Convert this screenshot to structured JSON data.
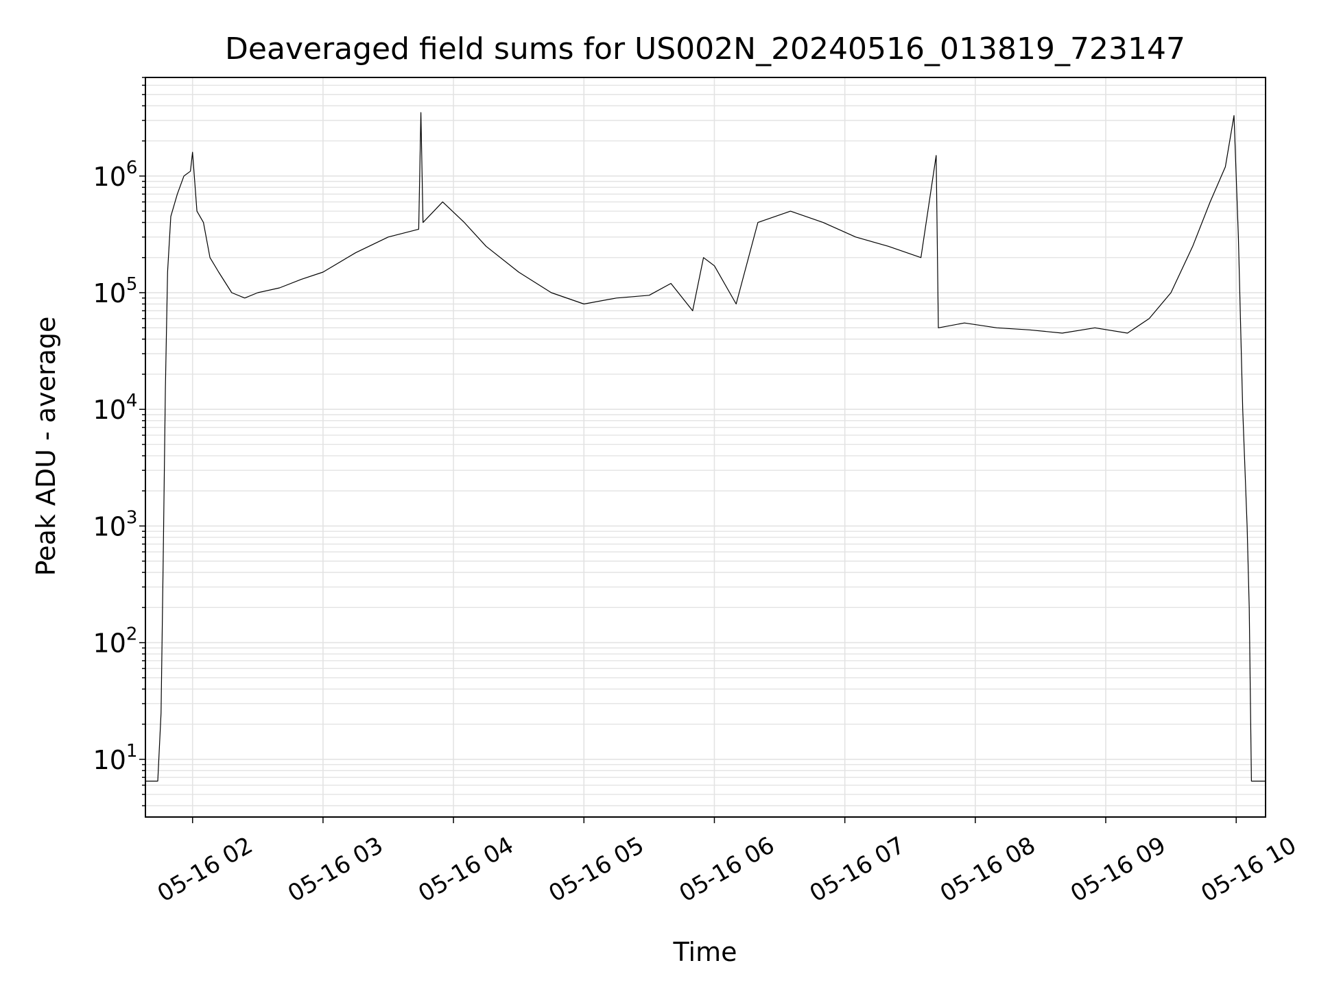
{
  "chart_data": {
    "type": "line",
    "title": "Deaveraged field sums for US002N_20240516_013819_723147",
    "xlabel": "Time",
    "ylabel": "Peak ADU - average",
    "yscale": "log",
    "ylim": [
      3.2,
      7000000
    ],
    "xlim": [
      "2024-05-16T01:38:19",
      "2024-05-16T10:13:30"
    ],
    "grid": "on (major and minor)",
    "legend": "none",
    "line_color": "#000000",
    "x_ticks": [
      {
        "label": "05-16 02",
        "time": "2024-05-16T02:00:00"
      },
      {
        "label": "05-16 03",
        "time": "2024-05-16T03:00:00"
      },
      {
        "label": "05-16 04",
        "time": "2024-05-16T04:00:00"
      },
      {
        "label": "05-16 05",
        "time": "2024-05-16T05:00:00"
      },
      {
        "label": "05-16 06",
        "time": "2024-05-16T06:00:00"
      },
      {
        "label": "05-16 07",
        "time": "2024-05-16T07:00:00"
      },
      {
        "label": "05-16 08",
        "time": "2024-05-16T08:00:00"
      },
      {
        "label": "05-16 09",
        "time": "2024-05-16T09:00:00"
      },
      {
        "label": "05-16 10",
        "time": "2024-05-16T10:00:00"
      }
    ],
    "y_ticks": [
      {
        "base": "10",
        "exp": "1",
        "value": 10
      },
      {
        "base": "10",
        "exp": "2",
        "value": 100
      },
      {
        "base": "10",
        "exp": "3",
        "value": 1000
      },
      {
        "base": "10",
        "exp": "4",
        "value": 10000
      },
      {
        "base": "10",
        "exp": "5",
        "value": 100000
      },
      {
        "base": "10",
        "exp": "6",
        "value": 1000000
      }
    ],
    "series": [
      {
        "points": [
          [
            "2024-05-16T01:38:19",
            6.5
          ],
          [
            "2024-05-16T01:44:00",
            6.5
          ],
          [
            "2024-05-16T01:45:30",
            25
          ],
          [
            "2024-05-16T01:46:30",
            500
          ],
          [
            "2024-05-16T01:47:30",
            15000
          ],
          [
            "2024-05-16T01:48:30",
            150000
          ],
          [
            "2024-05-16T01:50:00",
            450000
          ],
          [
            "2024-05-16T01:53:00",
            700000
          ],
          [
            "2024-05-16T01:56:00",
            1000000
          ],
          [
            "2024-05-16T01:59:00",
            1100000
          ],
          [
            "2024-05-16T02:00:00",
            1600000
          ],
          [
            "2024-05-16T02:02:00",
            500000
          ],
          [
            "2024-05-16T02:05:00",
            400000
          ],
          [
            "2024-05-16T02:08:00",
            200000
          ],
          [
            "2024-05-16T02:12:00",
            150000
          ],
          [
            "2024-05-16T02:18:00",
            100000
          ],
          [
            "2024-05-16T02:24:00",
            90000
          ],
          [
            "2024-05-16T02:30:00",
            100000
          ],
          [
            "2024-05-16T02:40:00",
            110000
          ],
          [
            "2024-05-16T02:50:00",
            130000
          ],
          [
            "2024-05-16T03:00:00",
            150000
          ],
          [
            "2024-05-16T03:15:00",
            220000
          ],
          [
            "2024-05-16T03:30:00",
            300000
          ],
          [
            "2024-05-16T03:44:00",
            350000
          ],
          [
            "2024-05-16T03:45:00",
            3500000
          ],
          [
            "2024-05-16T03:46:00",
            400000
          ],
          [
            "2024-05-16T03:55:00",
            600000
          ],
          [
            "2024-05-16T04:05:00",
            400000
          ],
          [
            "2024-05-16T04:15:00",
            250000
          ],
          [
            "2024-05-16T04:30:00",
            150000
          ],
          [
            "2024-05-16T04:45:00",
            100000
          ],
          [
            "2024-05-16T05:00:00",
            80000
          ],
          [
            "2024-05-16T05:15:00",
            90000
          ],
          [
            "2024-05-16T05:30:00",
            95000
          ],
          [
            "2024-05-16T05:40:00",
            120000
          ],
          [
            "2024-05-16T05:50:00",
            70000
          ],
          [
            "2024-05-16T05:55:00",
            200000
          ],
          [
            "2024-05-16T06:00:00",
            170000
          ],
          [
            "2024-05-16T06:10:00",
            80000
          ],
          [
            "2024-05-16T06:20:00",
            400000
          ],
          [
            "2024-05-16T06:35:00",
            500000
          ],
          [
            "2024-05-16T06:50:00",
            400000
          ],
          [
            "2024-05-16T07:05:00",
            300000
          ],
          [
            "2024-05-16T07:20:00",
            250000
          ],
          [
            "2024-05-16T07:35:00",
            200000
          ],
          [
            "2024-05-16T07:42:00",
            1500000
          ],
          [
            "2024-05-16T07:43:00",
            50000
          ],
          [
            "2024-05-16T07:55:00",
            55000
          ],
          [
            "2024-05-16T08:10:00",
            50000
          ],
          [
            "2024-05-16T08:25:00",
            48000
          ],
          [
            "2024-05-16T08:40:00",
            45000
          ],
          [
            "2024-05-16T08:55:00",
            50000
          ],
          [
            "2024-05-16T09:10:00",
            45000
          ],
          [
            "2024-05-16T09:20:00",
            60000
          ],
          [
            "2024-05-16T09:30:00",
            100000
          ],
          [
            "2024-05-16T09:40:00",
            250000
          ],
          [
            "2024-05-16T09:48:00",
            600000
          ],
          [
            "2024-05-16T09:55:00",
            1200000
          ],
          [
            "2024-05-16T09:59:00",
            3300000
          ],
          [
            "2024-05-16T10:01:00",
            300000
          ],
          [
            "2024-05-16T10:03:00",
            10000
          ],
          [
            "2024-05-16T10:05:00",
            1000
          ],
          [
            "2024-05-16T10:06:00",
            200
          ],
          [
            "2024-05-16T10:07:00",
            6.5
          ],
          [
            "2024-05-16T10:13:30",
            6.5
          ]
        ]
      }
    ]
  }
}
